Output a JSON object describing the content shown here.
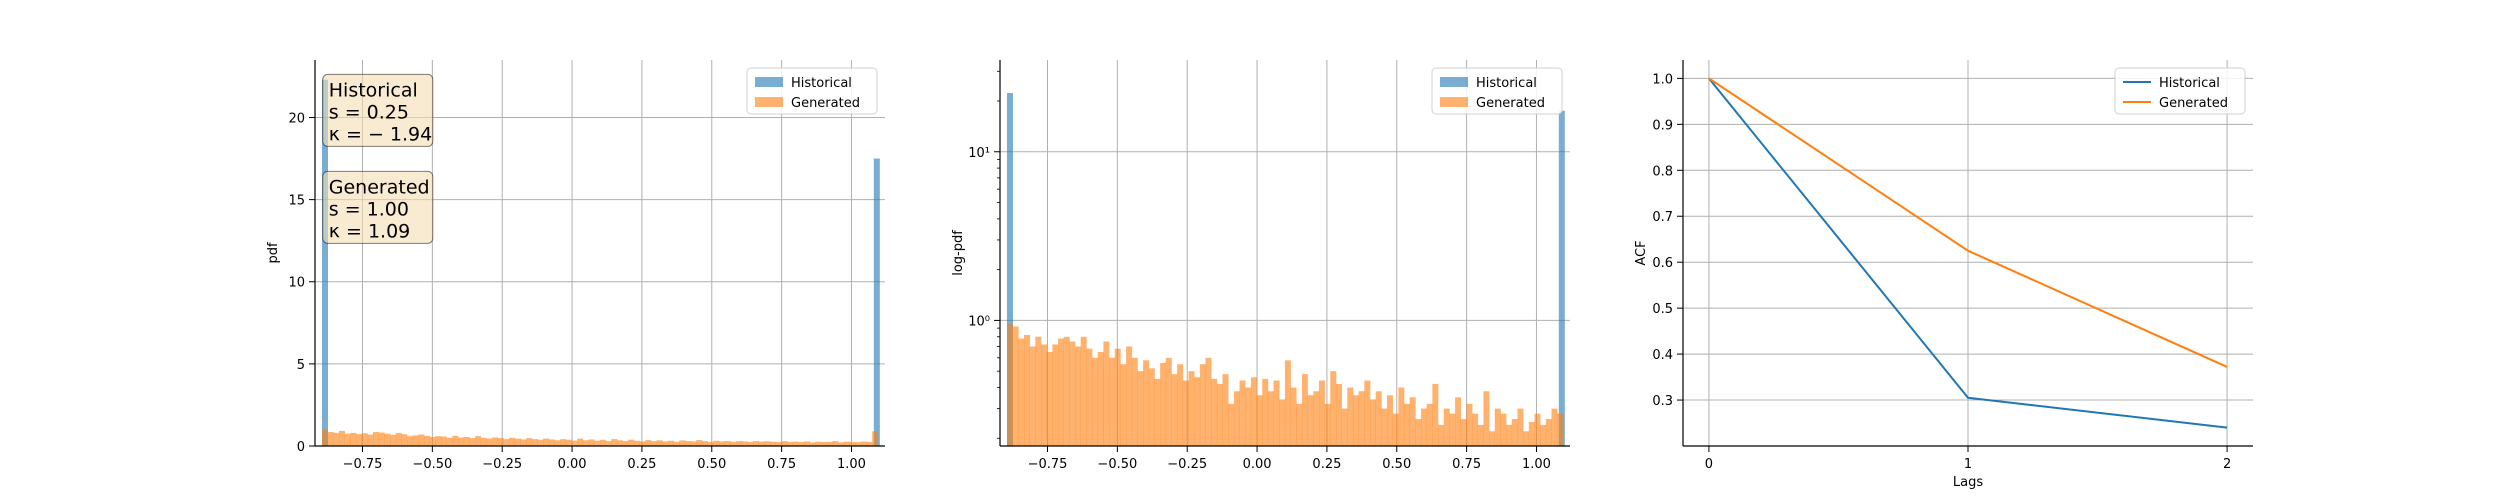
{
  "colors": {
    "historical": "#1f77b4",
    "generated": "#ff7f0e",
    "grid": "#b0b0b0",
    "axis": "#000000",
    "statsbox_fill": "#f5deb3",
    "statsbox_edge": "#000000"
  },
  "chart_data": [
    {
      "type": "histogram",
      "ylabel": "pdf",
      "xlim": [
        -0.92,
        1.12
      ],
      "ylim": [
        0,
        23.5
      ],
      "yscale": "linear",
      "xticks": [
        -0.75,
        -0.5,
        -0.25,
        0.0,
        0.25,
        0.5,
        0.75,
        1.0
      ],
      "xtick_labels": [
        "−0.75",
        "−0.50",
        "−0.25",
        "0.00",
        "0.25",
        "0.50",
        "0.75",
        "1.00"
      ],
      "yticks": [
        0,
        5,
        10,
        15,
        20
      ],
      "ytick_labels": [
        "0",
        "5",
        "10",
        "15",
        "20"
      ],
      "grid": true,
      "legend": {
        "placement": "top-right",
        "entries": [
          "Historical",
          "Generated"
        ]
      },
      "bin_width": 0.0203,
      "series": [
        {
          "name": "Historical",
          "bins": [
            {
              "left": -0.895,
              "height": 22.3
            },
            {
              "left": 1.08,
              "height": 17.5
            }
          ]
        },
        {
          "name": "Generated",
          "bins_start": -0.895,
          "heights": [
            0.98,
            0.85,
            0.8,
            0.92,
            0.75,
            0.8,
            0.72,
            0.78,
            0.7,
            0.85,
            0.82,
            0.75,
            0.68,
            0.8,
            0.72,
            0.6,
            0.65,
            0.7,
            0.62,
            0.55,
            0.6,
            0.58,
            0.5,
            0.62,
            0.52,
            0.55,
            0.48,
            0.6,
            0.5,
            0.45,
            0.52,
            0.48,
            0.42,
            0.5,
            0.45,
            0.4,
            0.48,
            0.42,
            0.38,
            0.45,
            0.4,
            0.35,
            0.42,
            0.38,
            0.32,
            0.45,
            0.35,
            0.4,
            0.32,
            0.38,
            0.3,
            0.42,
            0.35,
            0.3,
            0.38,
            0.32,
            0.28,
            0.36,
            0.3,
            0.35,
            0.28,
            0.32,
            0.26,
            0.34,
            0.3,
            0.28,
            0.36,
            0.3,
            0.25,
            0.32,
            0.28,
            0.3,
            0.26,
            0.3,
            0.28,
            0.25,
            0.3,
            0.27,
            0.29,
            0.26,
            0.24,
            0.3,
            0.25,
            0.27,
            0.24,
            0.28,
            0.22,
            0.26,
            0.24,
            0.25,
            0.3,
            0.22,
            0.26,
            0.24,
            0.23,
            0.27,
            0.25,
            0.9
          ]
        }
      ],
      "annotations": [
        {
          "title": "Historical",
          "lines": [
            "s = 0.25",
            "κ = − 1.94"
          ],
          "anchor": [
            -0.885,
            22.5
          ]
        },
        {
          "title": "Generated",
          "lines": [
            "s = 1.00",
            "κ = 1.09"
          ],
          "anchor": [
            -0.885,
            16.6
          ]
        }
      ]
    },
    {
      "type": "histogram",
      "ylabel": "log-pdf",
      "xlim": [
        -0.92,
        1.12
      ],
      "ylim": [
        0.18,
        35
      ],
      "yscale": "log",
      "xticks": [
        -0.75,
        -0.5,
        -0.25,
        0.0,
        0.25,
        0.5,
        0.75,
        1.0
      ],
      "xtick_labels": [
        "−0.75",
        "−0.50",
        "−0.25",
        "0.00",
        "0.25",
        "0.50",
        "0.75",
        "1.00"
      ],
      "yticks": [
        1,
        10
      ],
      "ytick_labels": [
        "10⁰",
        "10¹"
      ],
      "grid": true,
      "legend": {
        "placement": "top-right",
        "entries": [
          "Historical",
          "Generated"
        ]
      },
      "bin_width": 0.0203,
      "series": [
        {
          "name": "Historical",
          "bins": [
            {
              "left": -0.895,
              "height": 22.3
            },
            {
              "left": 1.08,
              "height": 17.5
            }
          ]
        },
        {
          "name": "Generated",
          "bins_start": -0.895,
          "heights": [
            0.95,
            0.92,
            0.78,
            0.82,
            0.7,
            0.8,
            0.72,
            0.65,
            0.72,
            0.78,
            0.8,
            0.75,
            0.7,
            0.8,
            0.68,
            0.6,
            0.65,
            0.75,
            0.6,
            0.68,
            0.55,
            0.7,
            0.6,
            0.5,
            0.58,
            0.52,
            0.45,
            0.56,
            0.6,
            0.48,
            0.55,
            0.44,
            0.5,
            0.46,
            0.55,
            0.6,
            0.45,
            0.42,
            0.48,
            0.32,
            0.38,
            0.44,
            0.4,
            0.46,
            0.36,
            0.45,
            0.38,
            0.44,
            0.34,
            0.58,
            0.4,
            0.32,
            0.48,
            0.36,
            0.38,
            0.44,
            0.32,
            0.5,
            0.42,
            0.3,
            0.4,
            0.36,
            0.38,
            0.44,
            0.34,
            0.38,
            0.3,
            0.36,
            0.28,
            0.4,
            0.32,
            0.35,
            0.26,
            0.3,
            0.32,
            0.42,
            0.24,
            0.3,
            0.28,
            0.35,
            0.26,
            0.32,
            0.28,
            0.24,
            0.38,
            0.22,
            0.3,
            0.28,
            0.24,
            0.26,
            0.3,
            0.22,
            0.25,
            0.28,
            0.24,
            0.26,
            0.3,
            0.28
          ]
        }
      ]
    },
    {
      "type": "line",
      "ylabel": "ACF",
      "xlabel": "Lags",
      "xlim": [
        -0.1,
        2.1
      ],
      "ylim": [
        0.2,
        1.04
      ],
      "xticks": [
        0,
        1,
        2
      ],
      "xtick_labels": [
        "0",
        "1",
        "2"
      ],
      "yticks": [
        0.3,
        0.4,
        0.5,
        0.6,
        0.7,
        0.8,
        0.9,
        1.0
      ],
      "ytick_labels": [
        "0.3",
        "0.4",
        "0.5",
        "0.6",
        "0.7",
        "0.8",
        "0.9",
        "1.0"
      ],
      "grid": true,
      "legend": {
        "placement": "top-right",
        "entries": [
          "Historical",
          "Generated"
        ]
      },
      "x": [
        0,
        1,
        2
      ],
      "series": [
        {
          "name": "Historical",
          "values": [
            1.0,
            0.305,
            0.24
          ]
        },
        {
          "name": "Generated",
          "values": [
            1.0,
            0.625,
            0.372
          ]
        }
      ]
    }
  ]
}
